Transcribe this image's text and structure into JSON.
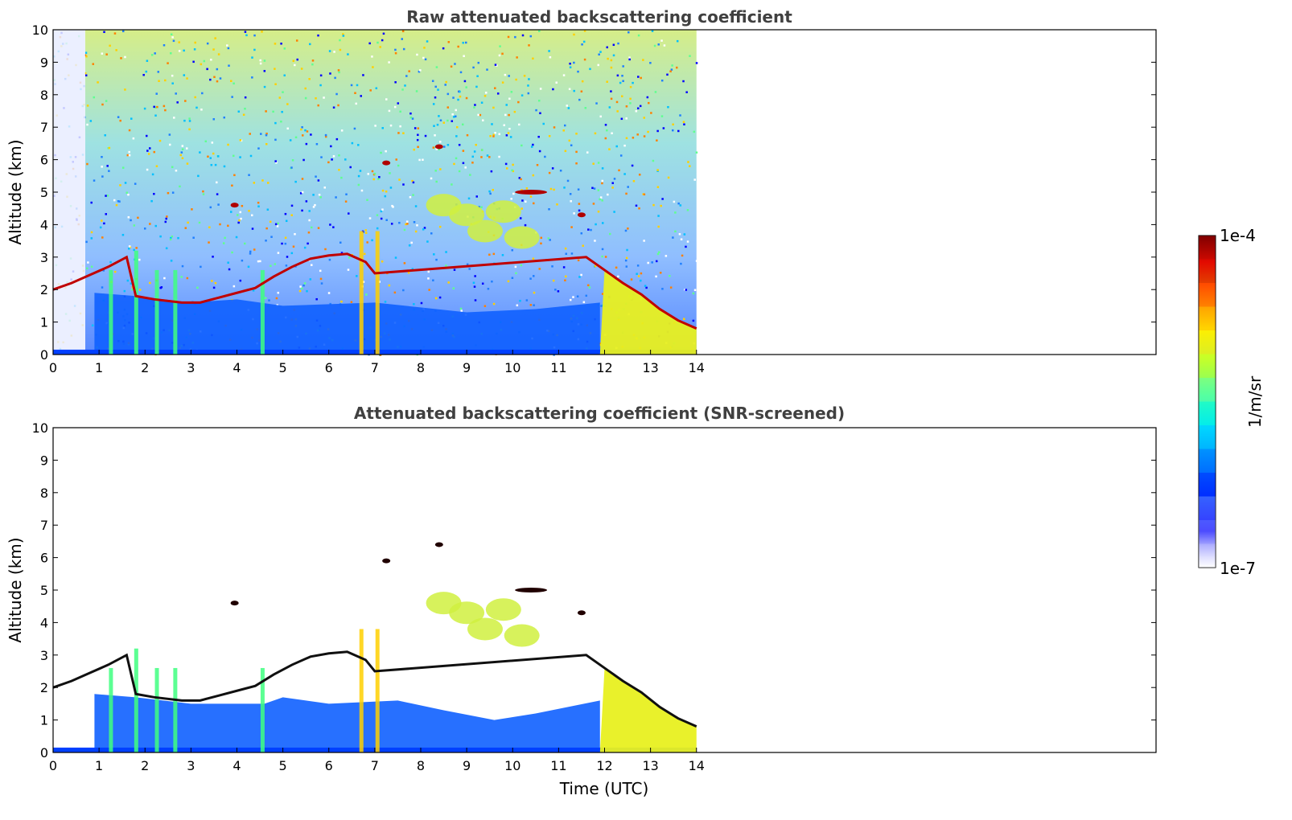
{
  "chart_data": [
    {
      "type": "heatmap",
      "title": "Raw attenuated backscattering coefficient",
      "xlabel": "",
      "ylabel": "Altitude (km)",
      "xlim": [
        0,
        24
      ],
      "ylim": [
        0,
        10
      ],
      "x_ticks": [
        0,
        1,
        2,
        3,
        4,
        5,
        6,
        7,
        8,
        9,
        10,
        11,
        12,
        13,
        14
      ],
      "y_ticks": [
        0,
        1,
        2,
        3,
        4,
        5,
        6,
        7,
        8,
        9,
        10
      ],
      "data_extent_x": [
        0,
        14
      ],
      "colorscale": "jet",
      "layers": {
        "boundary_layer_top_km": [
          [
            0,
            2.0
          ],
          [
            0.4,
            2.2
          ],
          [
            0.8,
            2.45
          ],
          [
            1.2,
            2.7
          ],
          [
            1.6,
            3.0
          ],
          [
            1.8,
            1.8
          ],
          [
            2.2,
            1.7
          ],
          [
            2.8,
            1.6
          ],
          [
            3.2,
            1.6
          ],
          [
            3.6,
            1.75
          ],
          [
            4.0,
            1.9
          ],
          [
            4.4,
            2.05
          ],
          [
            4.8,
            2.4
          ],
          [
            5.2,
            2.7
          ],
          [
            5.6,
            2.95
          ],
          [
            6.0,
            3.05
          ],
          [
            6.4,
            3.1
          ],
          [
            6.8,
            2.85
          ],
          [
            7.0,
            2.5
          ],
          [
            11.6,
            3.0
          ],
          [
            12.0,
            2.6
          ],
          [
            12.4,
            2.2
          ],
          [
            12.8,
            1.85
          ],
          [
            13.2,
            1.4
          ],
          [
            13.6,
            1.05
          ],
          [
            14.0,
            0.8
          ]
        ],
        "mid_level_cloud_patches_km": [
          [
            3.95,
            4.6
          ],
          [
            7.25,
            5.9
          ],
          [
            8.4,
            6.4
          ],
          [
            10.4,
            5.0
          ],
          [
            11.5,
            4.3
          ]
        ],
        "aerosol_layer_km": [
          [
            8.5,
            4.6
          ],
          [
            9.0,
            4.3
          ],
          [
            9.4,
            3.8
          ],
          [
            9.8,
            4.4
          ],
          [
            10.2,
            3.6
          ]
        ]
      }
    },
    {
      "type": "heatmap",
      "title": "Attenuated backscattering coefficient (SNR-screened)",
      "xlabel": "Time (UTC)",
      "ylabel": "Altitude (km)",
      "xlim": [
        0,
        24
      ],
      "ylim": [
        0,
        10
      ],
      "x_ticks": [
        0,
        1,
        2,
        3,
        4,
        5,
        6,
        7,
        8,
        9,
        10,
        11,
        12,
        13,
        14
      ],
      "y_ticks": [
        0,
        1,
        2,
        3,
        4,
        5,
        6,
        7,
        8,
        9,
        10
      ],
      "data_extent_x": [
        0,
        14
      ],
      "colorscale": "jet"
    }
  ],
  "colorbar": {
    "label": "1/m/sr",
    "max_label": "1e-4",
    "min_label": "1e-7",
    "scale": "log",
    "colors": [
      "#ffffff",
      "#d9d9ff",
      "#9999ff",
      "#0000ff",
      "#0060ff",
      "#00c0ff",
      "#00ffd0",
      "#80ff80",
      "#d0ff00",
      "#ffd000",
      "#ff8000",
      "#ff2000",
      "#b00000",
      "#800000"
    ]
  }
}
